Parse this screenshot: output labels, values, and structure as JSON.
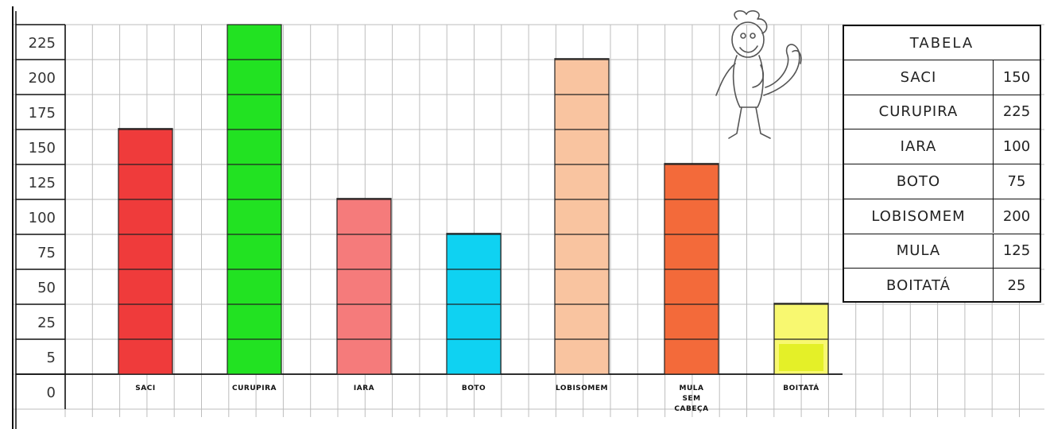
{
  "chart_data": {
    "type": "bar",
    "title": "",
    "xlabel": "",
    "ylabel": "",
    "y_ticks": [
      "0",
      "5",
      "25",
      "50",
      "75",
      "100",
      "125",
      "150",
      "175",
      "200",
      "225"
    ],
    "categories": [
      "SACI",
      "CURUPIRA",
      "IARA",
      "BOTO",
      "LOBISOMEM",
      "MULA SEM CABEÇA",
      "BOITATÁ"
    ],
    "values": [
      150,
      225,
      100,
      75,
      200,
      125,
      25
    ],
    "colors": [
      "#ef3b3b",
      "#22e222",
      "#f57b7b",
      "#0fd2f2",
      "#f9c4a0",
      "#f36a3a",
      "#f8f870"
    ],
    "grid": true,
    "ylim": [
      0,
      225
    ]
  },
  "table": {
    "title": "TABELA",
    "rows": [
      {
        "name": "SACI",
        "value": "150"
      },
      {
        "name": "CURUPIRA",
        "value": "225"
      },
      {
        "name": "IARA",
        "value": "100"
      },
      {
        "name": "BOTO",
        "value": "75"
      },
      {
        "name": "LOBISOMEM",
        "value": "200"
      },
      {
        "name": "MULA",
        "value": "125"
      },
      {
        "name": "BOITATÁ",
        "value": "25"
      }
    ]
  },
  "illustration": {
    "icon": "curupira-cartoon-icon"
  }
}
